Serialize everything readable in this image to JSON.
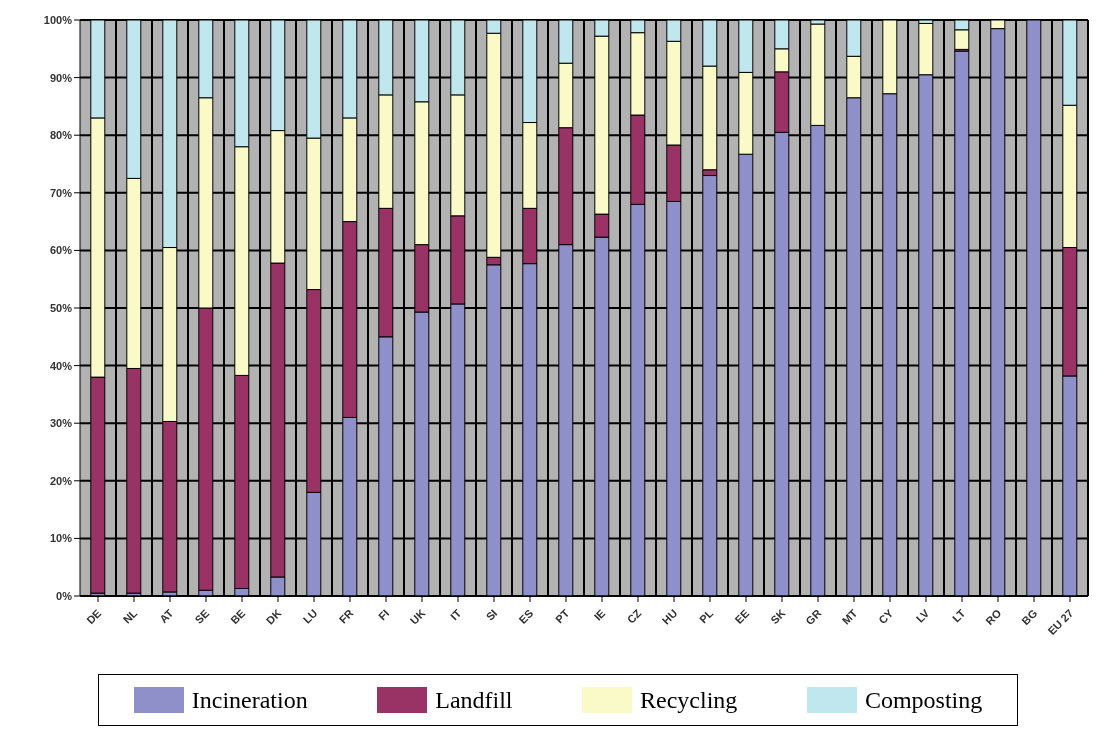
{
  "chart_data": {
    "type": "bar",
    "stacked": true,
    "grid": true,
    "legend": "bottom",
    "categories": [
      "DE",
      "NL",
      "AT",
      "SE",
      "BE",
      "DK",
      "LU",
      "FR",
      "FI",
      "UK",
      "IT",
      "SI",
      "ES",
      "PT",
      "IE",
      "CZ",
      "HU",
      "PL",
      "EE",
      "SK",
      "GR",
      "MT",
      "CY",
      "LV",
      "LT",
      "RO",
      "BG",
      "EU 27"
    ],
    "series": [
      {
        "name": "Incineration",
        "color": "#8f8fca",
        "values": [
          0.5,
          0.5,
          0.7,
          1,
          1.3,
          3.3,
          18,
          31,
          45,
          49.3,
          50.7,
          57.5,
          57.7,
          61,
          62.3,
          68,
          68.5,
          73,
          76.7,
          80.5,
          81.7,
          86.5,
          87.2,
          90.5,
          94.6,
          98.5,
          100,
          38.2
        ]
      },
      {
        "name": "Landfill",
        "color": "#993366",
        "values": [
          37.5,
          39,
          29.6,
          49,
          37,
          54.5,
          35.2,
          34,
          22.3,
          11.7,
          15.3,
          1.3,
          9.6,
          20.3,
          4,
          15.5,
          9.8,
          1,
          0,
          10.5,
          0,
          0,
          0,
          0,
          0.3,
          0,
          0,
          22.3
        ]
      },
      {
        "name": "Recycling",
        "color": "#fafac8",
        "values": [
          45,
          33,
          30.2,
          36.5,
          39.7,
          23,
          26.3,
          18,
          19.7,
          24.8,
          21,
          38.9,
          14.9,
          11.2,
          30.9,
          14.3,
          18,
          18,
          14.2,
          4,
          17.6,
          7.2,
          12.8,
          8.9,
          3.4,
          1.5,
          0,
          24.7
        ]
      },
      {
        "name": "Composting",
        "color": "#c0e6ee",
        "values": [
          17,
          27.5,
          39.5,
          13.5,
          22,
          19.2,
          20.5,
          17,
          13,
          14.2,
          13,
          2.3,
          17.8,
          7.5,
          2.8,
          2.2,
          3.7,
          8,
          9.1,
          5,
          0.7,
          6.3,
          0,
          0.6,
          1.7,
          0,
          0,
          14.8
        ]
      }
    ],
    "ylim": [
      0,
      100
    ],
    "yticks": [
      {
        "value": 0,
        "label": "0%"
      },
      {
        "value": 10,
        "label": "10%"
      },
      {
        "value": 20,
        "label": "20%"
      },
      {
        "value": 30,
        "label": "30%"
      },
      {
        "value": 40,
        "label": "40%"
      },
      {
        "value": 50,
        "label": "50%"
      },
      {
        "value": 60,
        "label": "60%"
      },
      {
        "value": 70,
        "label": "70%"
      },
      {
        "value": 80,
        "label": "80%"
      },
      {
        "value": 90,
        "label": "90%"
      },
      {
        "value": 100,
        "label": "100%"
      }
    ]
  }
}
